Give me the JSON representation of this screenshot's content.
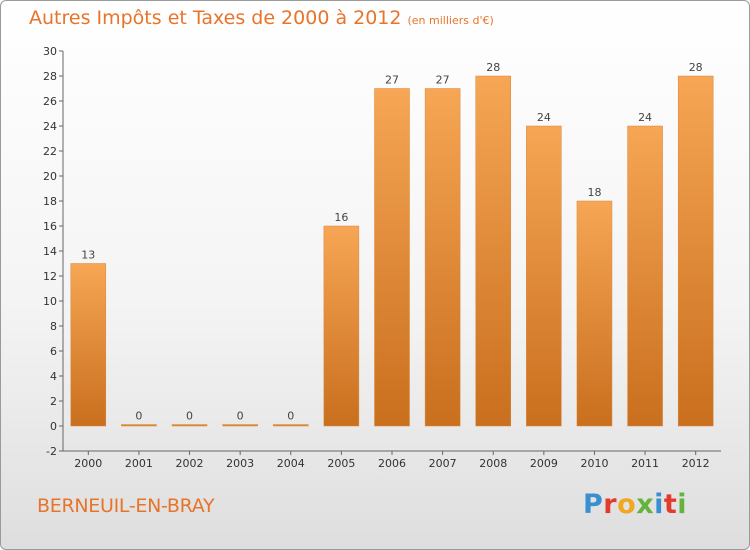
{
  "title": "Autres Impôts et Taxes de 2000 à 2012",
  "unit_note": "(en milliers d'€)",
  "commune": "BERNEUIL-EN-BRAY",
  "logo": {
    "letters": [
      "P",
      "r",
      "o",
      "x",
      "i",
      "t",
      "i"
    ],
    "colors": [
      "#3a8fd0",
      "#e23b2e",
      "#f0a820",
      "#64b33c",
      "#3a8fd0",
      "#e23b2e",
      "#64b33c"
    ]
  },
  "colors": {
    "bar_top": "#f6a654",
    "bar_bottom": "#c96f1e",
    "title": "#e8742a"
  },
  "chart_data": {
    "type": "bar",
    "title": "Autres Impôts et Taxes de 2000 à 2012",
    "categories": [
      "2000",
      "2001",
      "2002",
      "2003",
      "2004",
      "2005",
      "2006",
      "2007",
      "2008",
      "2009",
      "2010",
      "2011",
      "2012"
    ],
    "values": [
      13,
      0,
      0,
      0,
      0,
      16,
      27,
      27,
      28,
      24,
      18,
      24,
      28
    ],
    "ylim": [
      -2,
      30
    ],
    "yticks": [
      -2,
      0,
      2,
      4,
      6,
      8,
      10,
      12,
      14,
      16,
      18,
      20,
      22,
      24,
      26,
      28,
      30
    ],
    "grid": false,
    "xlabel": "",
    "ylabel": ""
  }
}
